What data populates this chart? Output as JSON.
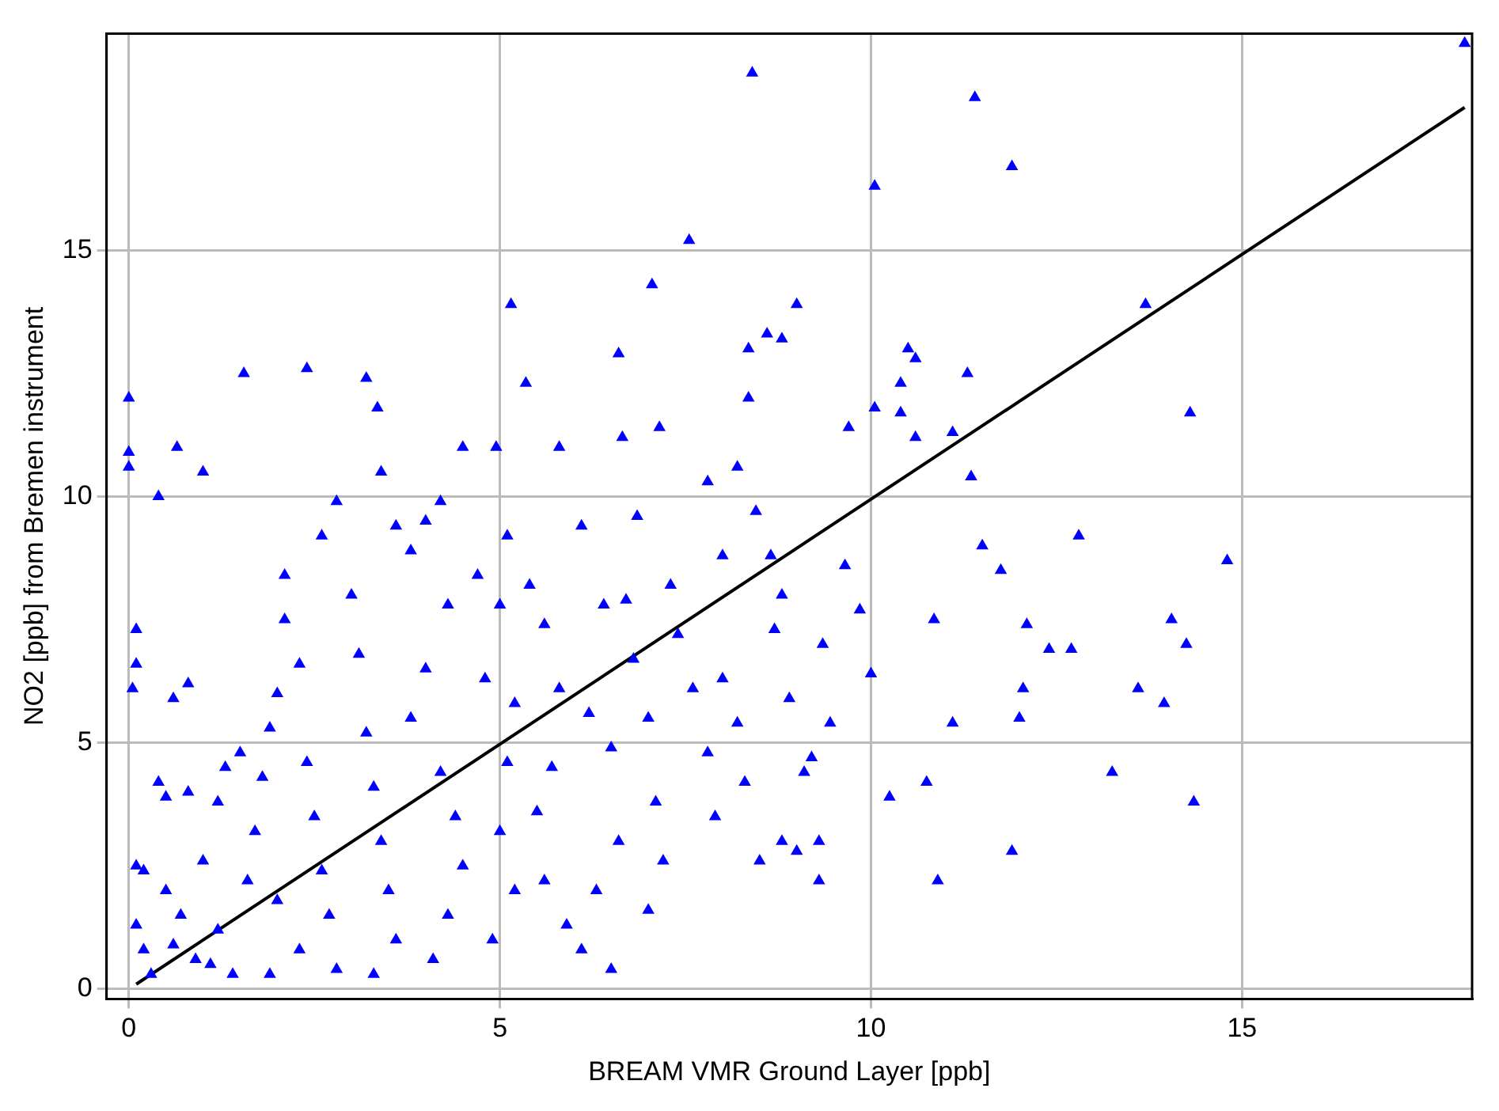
{
  "chart_data": {
    "type": "scatter",
    "xlabel": "BREAM VMR Ground Layer [ppb]",
    "ylabel": "NO2 [ppb] from Bremen instrument",
    "xlim": [
      -0.3,
      18.1
    ],
    "ylim": [
      -0.2,
      19.4
    ],
    "xticks": [
      0,
      5,
      10,
      15
    ],
    "yticks": [
      0,
      5,
      10,
      15
    ],
    "grid": true,
    "legend": false,
    "marker": "triangle",
    "series": [
      {
        "color": "#0000ff",
        "x": [
          18.0,
          8.4,
          11.4,
          11.9,
          10.05,
          7.55,
          13.7,
          5.15,
          9.0,
          7.05,
          0.0,
          1.55,
          2.4,
          3.2,
          3.35,
          0.65,
          0.0,
          0.0,
          1.0,
          0.4,
          3.4,
          4.5,
          5.35,
          6.6,
          8.35,
          8.6,
          8.8,
          8.35,
          6.65,
          7.15,
          9.7,
          10.4,
          10.5,
          10.6,
          11.3,
          10.05,
          10.4,
          10.6,
          11.1,
          11.35,
          14.3,
          12.8,
          11.5,
          11.75,
          12.1,
          12.4,
          12.7,
          10.85,
          14.05,
          14.25,
          14.8,
          13.6,
          13.95,
          12.05,
          12.0,
          13.25,
          14.35,
          11.9,
          10.9,
          10.75,
          11.1,
          10.0,
          9.45,
          9.2,
          9.3,
          9.3,
          9.0,
          10.25,
          9.85,
          9.65,
          8.65,
          8.45,
          8.2,
          6.85,
          6.1,
          5.1,
          5.8,
          4.95,
          7.8,
          9.35,
          8.8,
          6.5,
          0.1,
          0.1,
          0.05,
          0.1,
          0.2,
          0.1,
          0.2,
          0.4,
          0.5,
          0.6,
          0.8,
          0.8,
          0.5,
          0.7,
          0.9,
          1.0,
          1.2,
          1.3,
          1.5,
          1.2,
          1.4,
          1.6,
          1.7,
          1.8,
          1.9,
          2.0,
          2.1,
          2.1,
          2.3,
          2.4,
          2.5,
          2.6,
          2.7,
          2.8,
          2.3,
          2.0,
          2.6,
          2.8,
          3.0,
          3.1,
          3.2,
          3.3,
          3.4,
          3.5,
          3.6,
          3.3,
          3.6,
          3.8,
          4.0,
          4.2,
          4.3,
          4.0,
          3.8,
          4.2,
          4.4,
          4.5,
          4.3,
          4.1,
          4.7,
          4.8,
          5.0,
          5.2,
          5.1,
          5.0,
          5.2,
          4.9,
          5.4,
          5.6,
          5.8,
          5.7,
          5.5,
          5.6,
          5.9,
          6.1,
          6.2,
          6.4,
          6.5,
          6.6,
          6.8,
          7.0,
          7.1,
          7.2,
          7.4,
          7.6,
          7.8,
          7.9,
          8.0,
          8.2,
          8.3,
          8.5,
          8.7,
          8.9,
          9.1,
          8.8,
          7.0,
          6.3,
          0.3,
          0.6,
          1.1,
          1.9,
          6.7,
          7.3,
          8.0
        ],
        "values": [
          19.2,
          18.6,
          18.1,
          16.7,
          16.3,
          15.2,
          13.9,
          13.9,
          13.9,
          14.3,
          12.0,
          12.5,
          12.6,
          12.4,
          11.8,
          11.0,
          10.9,
          10.6,
          10.5,
          10.0,
          10.5,
          11.0,
          12.3,
          12.9,
          13.0,
          13.3,
          13.2,
          12.0,
          11.2,
          11.4,
          11.4,
          12.3,
          13.0,
          12.8,
          12.5,
          11.8,
          11.7,
          11.2,
          11.3,
          10.4,
          11.7,
          9.2,
          9.0,
          8.5,
          7.4,
          6.9,
          6.9,
          7.5,
          7.5,
          7.0,
          8.7,
          6.1,
          5.8,
          6.1,
          5.5,
          4.4,
          3.8,
          2.8,
          2.2,
          4.2,
          5.4,
          6.4,
          5.4,
          4.7,
          2.2,
          3.0,
          2.8,
          3.9,
          7.7,
          8.6,
          8.8,
          9.7,
          10.6,
          9.6,
          9.4,
          9.2,
          11.0,
          11.0,
          10.3,
          7.0,
          8.0,
          0.4,
          7.3,
          6.6,
          6.1,
          2.5,
          2.4,
          1.3,
          0.8,
          4.2,
          3.9,
          5.9,
          6.2,
          4.0,
          2.0,
          1.5,
          0.6,
          2.6,
          3.8,
          4.5,
          4.8,
          1.2,
          0.3,
          2.2,
          3.2,
          4.3,
          5.3,
          6.0,
          7.5,
          8.4,
          6.6,
          4.6,
          3.5,
          2.4,
          1.5,
          0.4,
          0.8,
          1.8,
          9.2,
          9.9,
          8.0,
          6.8,
          5.2,
          4.1,
          3.0,
          2.0,
          1.0,
          0.3,
          9.4,
          8.9,
          9.5,
          9.9,
          7.8,
          6.5,
          5.5,
          4.4,
          3.5,
          2.5,
          1.5,
          0.6,
          8.4,
          6.3,
          7.8,
          5.8,
          4.6,
          3.2,
          2.0,
          1.0,
          8.2,
          7.4,
          6.1,
          4.5,
          3.6,
          2.2,
          1.3,
          0.8,
          5.6,
          7.8,
          4.9,
          3.0,
          6.7,
          5.5,
          3.8,
          2.6,
          7.2,
          6.1,
          4.8,
          3.5,
          6.3,
          5.4,
          4.2,
          2.6,
          7.3,
          5.9,
          4.4,
          3.0,
          1.6,
          2.0,
          0.3,
          0.9,
          0.5,
          0.3,
          7.9,
          8.2,
          8.8
        ]
      },
      {
        "type": "line",
        "marker": "none",
        "color": "#000000",
        "x": [
          0.1,
          18.0
        ],
        "values": [
          0.1,
          17.9
        ]
      }
    ]
  }
}
